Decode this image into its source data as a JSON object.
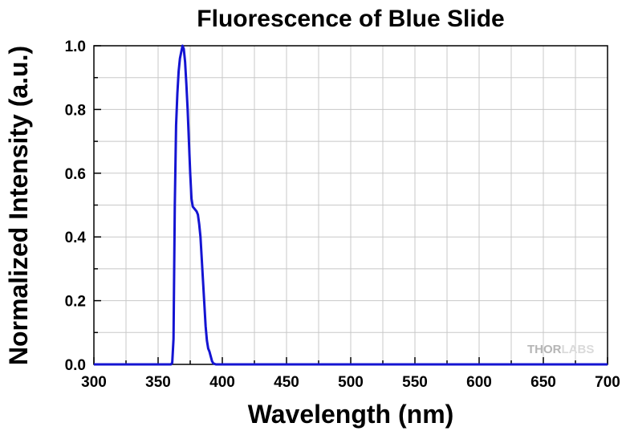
{
  "chart_data": {
    "type": "line",
    "title": "Fluorescence of Blue Slide",
    "xlabel": "Wavelength (nm)",
    "ylabel": "Normalized Intensity (a.u.)",
    "xlim": [
      300,
      700
    ],
    "ylim": [
      0,
      1.0
    ],
    "x_ticks": [
      "300",
      "350",
      "400",
      "450",
      "500",
      "550",
      "600",
      "650",
      "700"
    ],
    "y_ticks": [
      "0.0",
      "0.2",
      "0.4",
      "0.6",
      "0.8",
      "1.0"
    ],
    "grid": true,
    "series": [
      {
        "color": "#1414d2",
        "x": [
          300,
          355,
          360,
          361,
          362,
          363,
          364,
          365,
          366,
          367,
          368,
          369,
          370,
          371,
          372,
          373,
          374,
          375,
          376,
          377,
          378,
          379,
          380,
          381,
          382,
          383,
          384,
          385,
          386,
          387,
          388,
          389,
          390,
          391,
          392,
          393,
          395,
          400,
          450,
          500,
          550,
          600,
          650,
          700
        ],
        "y": [
          0,
          0,
          0,
          0.005,
          0.08,
          0.5,
          0.75,
          0.85,
          0.92,
          0.96,
          0.98,
          1.0,
          0.99,
          0.95,
          0.88,
          0.8,
          0.7,
          0.6,
          0.52,
          0.495,
          0.49,
          0.485,
          0.48,
          0.47,
          0.44,
          0.4,
          0.33,
          0.26,
          0.19,
          0.12,
          0.075,
          0.05,
          0.04,
          0.025,
          0.01,
          0.003,
          0,
          0,
          0,
          0,
          0,
          0,
          0,
          0
        ]
      }
    ]
  },
  "watermark": {
    "part1": "THOR",
    "part2": "LABS"
  }
}
